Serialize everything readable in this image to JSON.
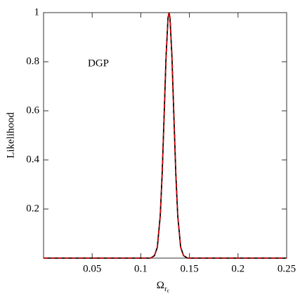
{
  "chart_data": {
    "type": "line",
    "y_label": "Likelihood",
    "x_label": {
      "main": "Ω",
      "sub": "r",
      "subsub": "c"
    },
    "annotation": "DGP",
    "x": [
      0,
      0.1,
      0.11,
      0.114,
      0.117,
      0.12,
      0.122,
      0.124,
      0.126,
      0.128,
      0.129,
      0.13,
      0.132,
      0.134,
      0.136,
      0.138,
      0.141,
      0.144,
      0.148,
      0.16,
      0.25
    ],
    "series": [
      {
        "color": "#000000",
        "dash": false,
        "values": [
          0,
          0,
          0,
          0.01,
          0.044,
          0.172,
          0.345,
          0.581,
          0.823,
          0.979,
          1,
          0.979,
          0.823,
          0.581,
          0.345,
          0.172,
          0.044,
          0.01,
          0,
          0,
          0
        ]
      },
      {
        "color": "#dd0000",
        "dash": true,
        "values": [
          0,
          0,
          0,
          0.01,
          0.044,
          0.172,
          0.345,
          0.581,
          0.823,
          0.979,
          1,
          0.979,
          0.823,
          0.581,
          0.345,
          0.172,
          0.044,
          0.01,
          0,
          0,
          0
        ]
      }
    ],
    "xlim": [
      0,
      0.25
    ],
    "xticks": [
      0.05,
      0.1,
      0.15,
      0.2,
      0.25
    ],
    "ylim": [
      0,
      1
    ],
    "yticks": [
      0.2,
      0.4,
      0.6,
      0.8,
      1
    ]
  }
}
